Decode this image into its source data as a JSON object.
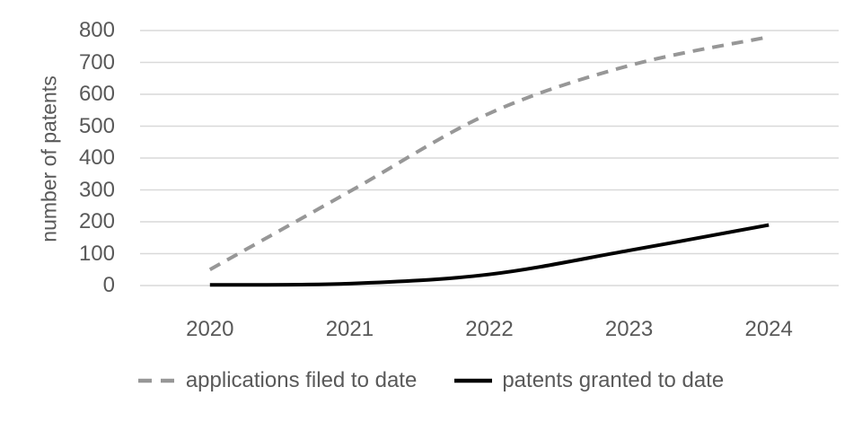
{
  "chart_data": {
    "type": "line",
    "title": "",
    "categories": [
      "2020",
      "2021",
      "2022",
      "2023",
      "2024"
    ],
    "series": [
      {
        "name": "applications filed to date",
        "values": [
          50,
          295,
          540,
          690,
          780
        ],
        "color": "#979797",
        "line_style": "dashed"
      },
      {
        "name": "patents granted to date",
        "values": [
          2,
          6,
          35,
          110,
          190
        ],
        "color": "#000000",
        "line_style": "solid"
      }
    ],
    "xlabel": "",
    "ylabel": "number of patents",
    "ylim": [
      0,
      800
    ],
    "ytick_step": 100,
    "grid": true,
    "legend_position": "bottom-center"
  },
  "colors": {
    "background": "#ffffff",
    "gridline": "#d9d9d9",
    "axis_text": "#595959"
  }
}
